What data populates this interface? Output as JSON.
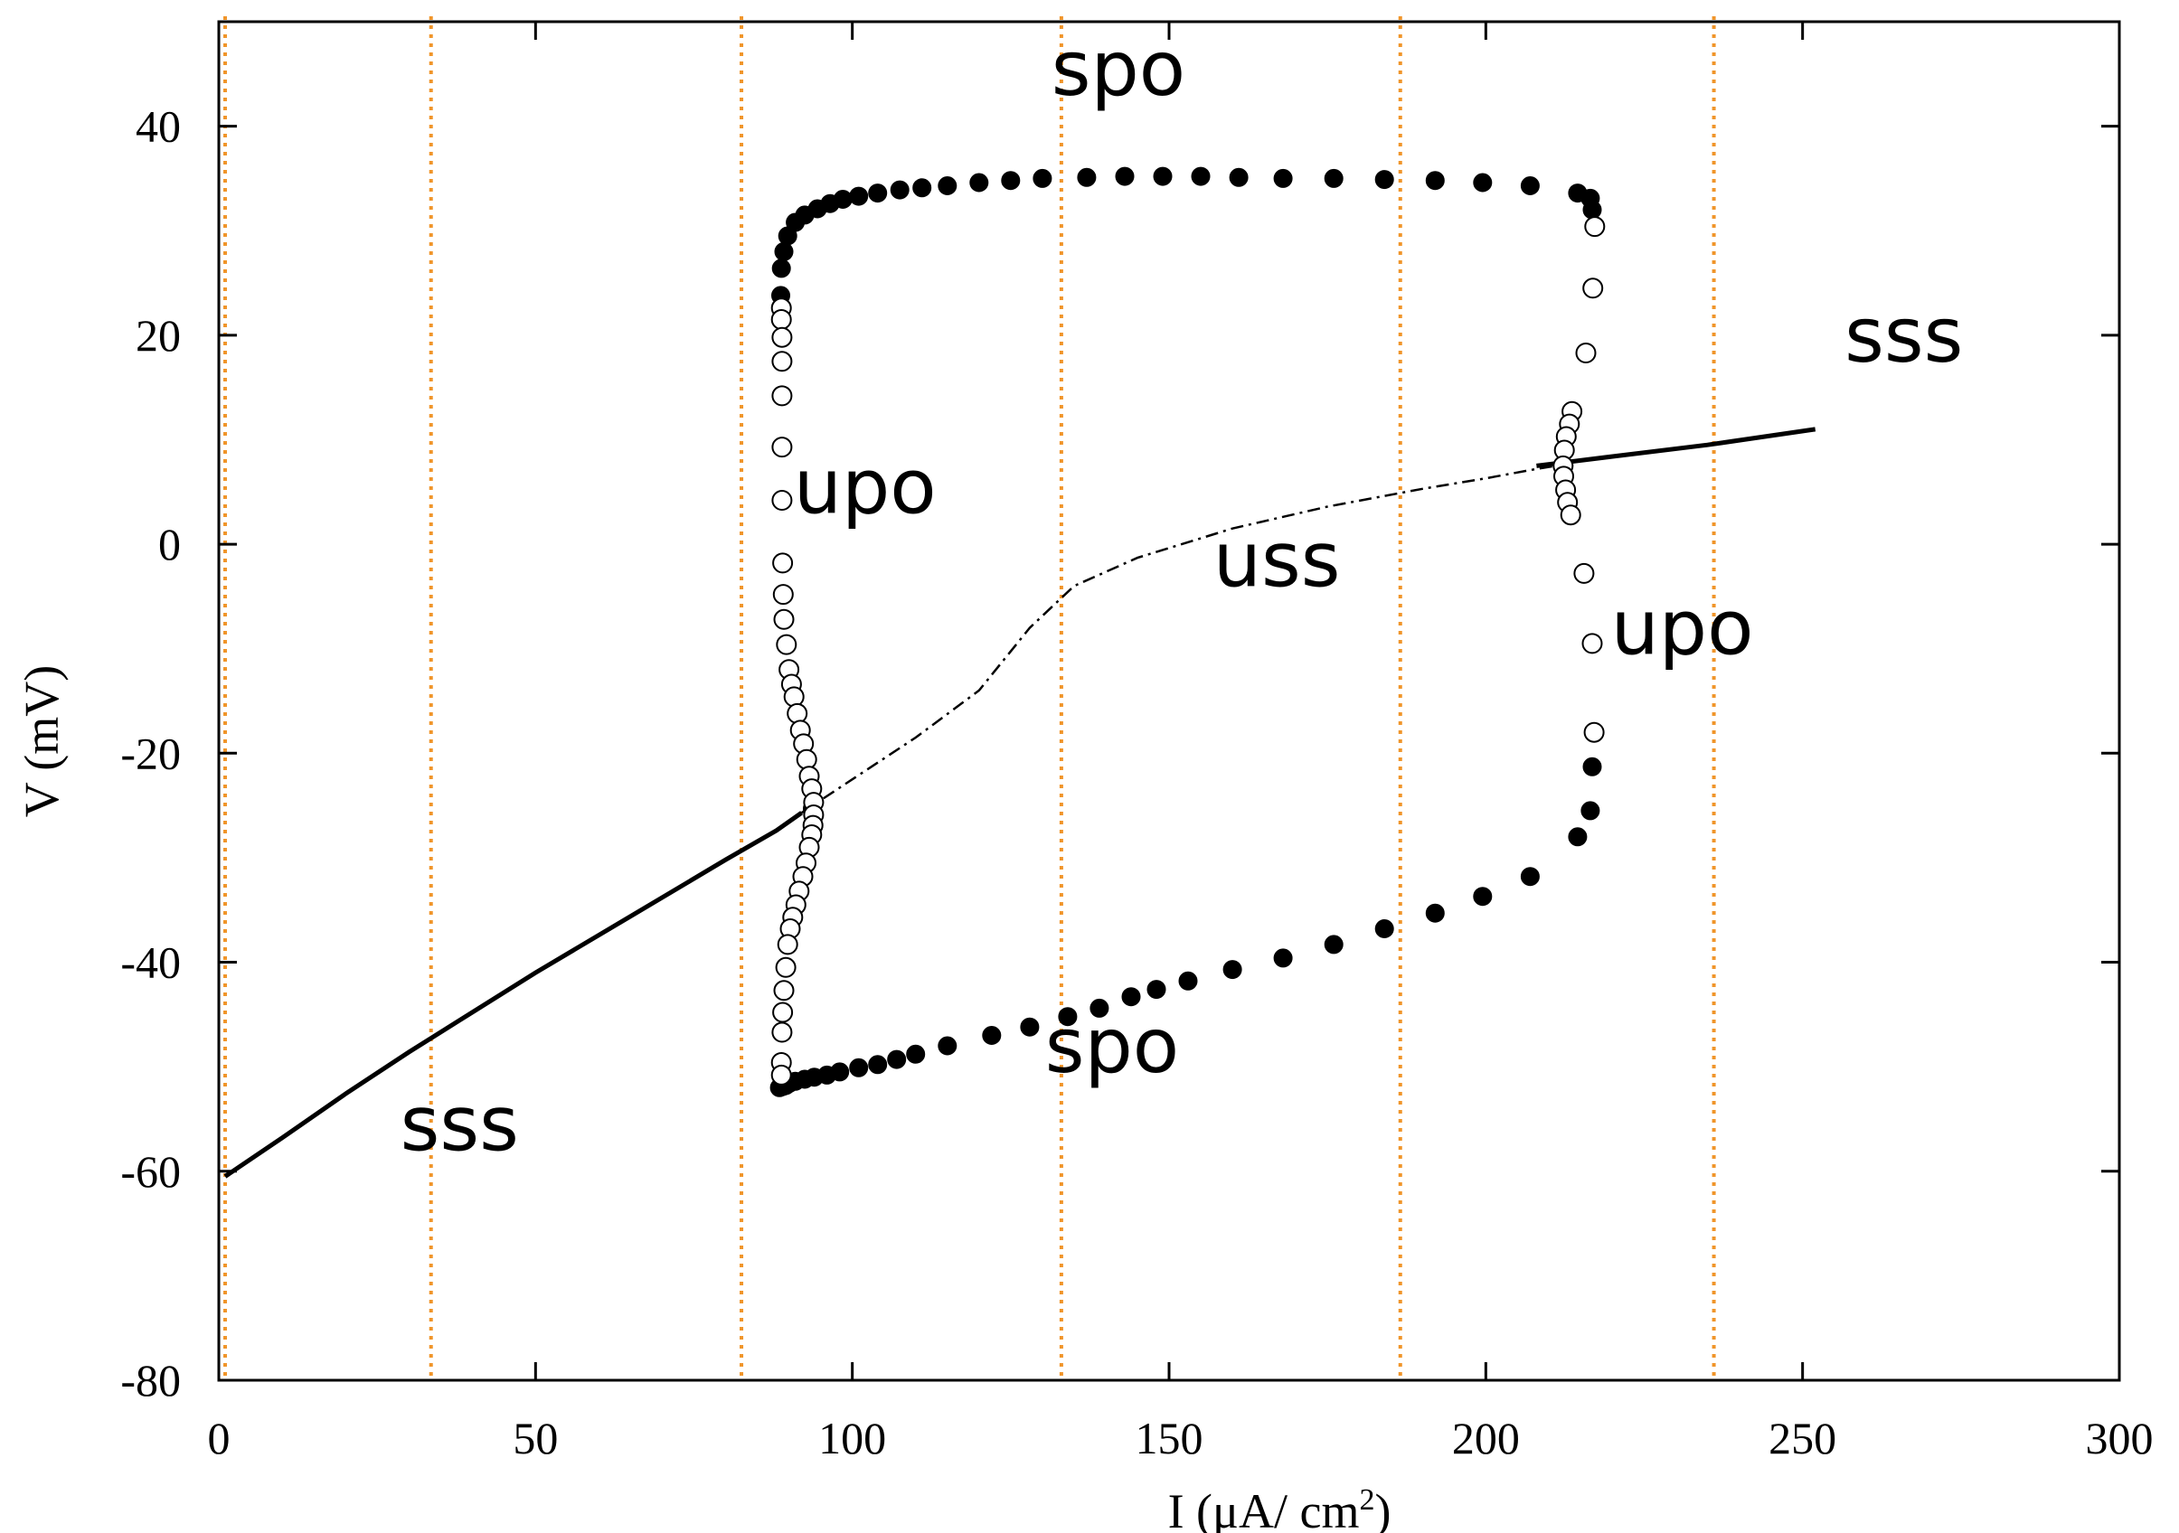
{
  "chart_data": {
    "type": "scatter",
    "xlabel": "I (μA/ cm",
    "xlabel_sup": "2",
    "xlabel_end": ")",
    "ylabel": "V (mV)",
    "xlim": [
      0,
      300
    ],
    "ylim": [
      -80,
      50
    ],
    "xticks": [
      0,
      50,
      100,
      150,
      200,
      250,
      300
    ],
    "yticks": [
      -80,
      -60,
      -40,
      -20,
      0,
      20,
      40
    ],
    "grid": false,
    "colors": {
      "axis": "#000000",
      "vlines": "#f0952a",
      "series": "#000000"
    },
    "vlines": [
      1,
      33.5,
      82.5,
      133,
      186.5,
      236
    ],
    "annotations": [
      {
        "text": "spo",
        "x": 142,
        "y": 43
      },
      {
        "text": "upo",
        "x": 102,
        "y": 3
      },
      {
        "text": "uss",
        "x": 167,
        "y": -4
      },
      {
        "text": "upo",
        "x": 231,
        "y": -10.5
      },
      {
        "text": "sss",
        "x": 266,
        "y": 17.5
      },
      {
        "text": "spo",
        "x": 141,
        "y": -50.5
      },
      {
        "text": "sss",
        "x": 38,
        "y": -58
      }
    ],
    "series": [
      {
        "style": "solid",
        "points": [
          [
            1,
            -60.5
          ],
          [
            10,
            -56.8
          ],
          [
            20,
            -52.6
          ],
          [
            30,
            -48.6
          ],
          [
            40,
            -44.8
          ],
          [
            50,
            -41
          ],
          [
            60,
            -37.4
          ],
          [
            70,
            -33.8
          ],
          [
            80,
            -30.2
          ],
          [
            88,
            -27.4
          ],
          [
            92,
            -25.7
          ]
        ]
      },
      {
        "style": "dashdot",
        "points": [
          [
            92,
            -25.7
          ],
          [
            100,
            -22.5
          ],
          [
            110,
            -18.5
          ],
          [
            120,
            -14
          ],
          [
            128,
            -8
          ],
          [
            135,
            -4
          ],
          [
            145,
            -1.3
          ],
          [
            160,
            1.5
          ],
          [
            175,
            3.6
          ],
          [
            190,
            5.3
          ],
          [
            200,
            6.3
          ],
          [
            208,
            7.2
          ],
          [
            212,
            7.6
          ]
        ]
      },
      {
        "style": "solid",
        "points": [
          [
            208,
            7.5
          ],
          [
            220,
            8.4
          ],
          [
            235,
            9.5
          ],
          [
            252,
            11
          ]
        ]
      },
      {
        "style": "filled",
        "points": [
          [
            88.5,
            -52
          ],
          [
            89,
            -51.9
          ],
          [
            89.5,
            -51.8
          ],
          [
            90,
            -51.6
          ],
          [
            91,
            -51.4
          ],
          [
            92.5,
            -51.2
          ],
          [
            94,
            -51
          ],
          [
            96,
            -50.8
          ],
          [
            98,
            -50.5
          ],
          [
            101,
            -50.1
          ],
          [
            104,
            -49.8
          ],
          [
            107,
            -49.3
          ],
          [
            110,
            -48.8
          ],
          [
            115,
            -48
          ],
          [
            122,
            -47
          ],
          [
            128,
            -46.2
          ],
          [
            134,
            -45.2
          ],
          [
            139,
            -44.4
          ],
          [
            144,
            -43.3
          ],
          [
            148,
            -42.6
          ],
          [
            153,
            -41.8
          ],
          [
            160,
            -40.7
          ],
          [
            168,
            -39.6
          ],
          [
            176,
            -38.3
          ],
          [
            184,
            -36.8
          ],
          [
            192,
            -35.3
          ],
          [
            199.5,
            -33.7
          ],
          [
            207,
            -31.8
          ],
          [
            214.5,
            -28
          ],
          [
            216.5,
            -25.5
          ],
          [
            216.8,
            -21.3
          ],
          [
            88.7,
            23.8
          ],
          [
            88.8,
            26.4
          ],
          [
            89.2,
            28
          ],
          [
            89.8,
            29.5
          ],
          [
            91,
            30.8
          ],
          [
            92.5,
            31.5
          ],
          [
            94.5,
            32.1
          ],
          [
            96.5,
            32.6
          ],
          [
            98.5,
            33
          ],
          [
            101,
            33.3
          ],
          [
            104,
            33.6
          ],
          [
            107.5,
            33.9
          ],
          [
            111,
            34.1
          ],
          [
            115,
            34.3
          ],
          [
            120,
            34.6
          ],
          [
            125,
            34.8
          ],
          [
            130,
            35
          ],
          [
            137,
            35.1
          ],
          [
            143,
            35.2
          ],
          [
            149,
            35.2
          ],
          [
            155,
            35.2
          ],
          [
            161,
            35.1
          ],
          [
            168,
            35
          ],
          [
            176,
            35
          ],
          [
            184,
            34.9
          ],
          [
            192,
            34.8
          ],
          [
            199.5,
            34.6
          ],
          [
            207,
            34.3
          ],
          [
            214.5,
            33.6
          ],
          [
            216.5,
            33.1
          ],
          [
            216.8,
            32
          ],
          [
            93.7,
            -25.3
          ]
        ]
      },
      {
        "style": "open",
        "points": [
          [
            88.8,
            22.6
          ],
          [
            88.8,
            21.5
          ],
          [
            88.9,
            19.8
          ],
          [
            88.9,
            17.5
          ],
          [
            88.9,
            14.2
          ],
          [
            88.9,
            9.3
          ],
          [
            88.9,
            4.2
          ],
          [
            89,
            -1.8
          ],
          [
            89.1,
            -4.8
          ],
          [
            89.2,
            -7.2
          ],
          [
            89.6,
            -9.6
          ],
          [
            90,
            -12
          ],
          [
            90.4,
            -13.4
          ],
          [
            90.8,
            -14.6
          ],
          [
            91.3,
            -16.2
          ],
          [
            91.8,
            -17.8
          ],
          [
            92.3,
            -19.1
          ],
          [
            92.8,
            -20.6
          ],
          [
            93.2,
            -22.2
          ],
          [
            93.6,
            -23.4
          ],
          [
            93.9,
            -24.7
          ],
          [
            93.9,
            -25.9
          ],
          [
            93.8,
            -26.9
          ],
          [
            93.6,
            -27.8
          ],
          [
            93.2,
            -29
          ],
          [
            92.7,
            -30.5
          ],
          [
            92.2,
            -31.8
          ],
          [
            91.6,
            -33.2
          ],
          [
            91.1,
            -34.5
          ],
          [
            90.6,
            -35.7
          ],
          [
            90.2,
            -36.8
          ],
          [
            89.8,
            -38.3
          ],
          [
            89.5,
            -40.5
          ],
          [
            89.2,
            -42.7
          ],
          [
            89,
            -44.8
          ],
          [
            88.9,
            -46.7
          ],
          [
            88.8,
            -49.6
          ],
          [
            88.8,
            -50.8
          ],
          [
            217.2,
            30.4
          ],
          [
            216.9,
            24.5
          ],
          [
            215.8,
            18.3
          ],
          [
            213.6,
            12.7
          ],
          [
            213.2,
            11.5
          ],
          [
            212.7,
            10.3
          ],
          [
            212.4,
            9
          ],
          [
            212.2,
            7.5
          ],
          [
            212.3,
            6.5
          ],
          [
            212.6,
            5.2
          ],
          [
            212.9,
            4
          ],
          [
            213.4,
            2.8
          ],
          [
            215.5,
            -2.8
          ],
          [
            216.8,
            -9.5
          ],
          [
            217.1,
            -18
          ]
        ]
      }
    ]
  }
}
